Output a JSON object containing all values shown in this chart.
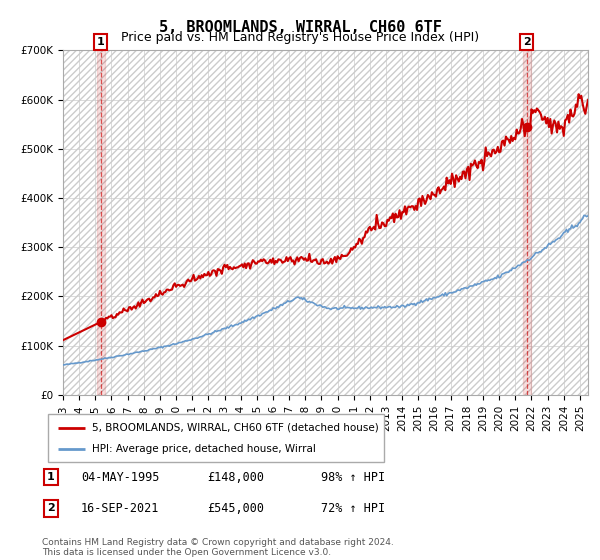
{
  "title": "5, BROOMLANDS, WIRRAL, CH60 6TF",
  "subtitle": "Price paid vs. HM Land Registry's House Price Index (HPI)",
  "ylim": [
    0,
    700000
  ],
  "yticks": [
    0,
    100000,
    200000,
    300000,
    400000,
    500000,
    600000,
    700000
  ],
  "ytick_labels": [
    "£0",
    "£100K",
    "£200K",
    "£300K",
    "£400K",
    "£500K",
    "£600K",
    "£700K"
  ],
  "xlim_start": 1993.0,
  "xlim_end": 2025.5,
  "sale1_x": 1995.34,
  "sale1_y": 148000,
  "sale2_x": 2021.71,
  "sale2_y": 545000,
  "hpi_color": "#6699cc",
  "price_color": "#cc0000",
  "sale_dot_color": "#cc0000",
  "grid_color": "#cccccc",
  "legend_entry1": "5, BROOMLANDS, WIRRAL, CH60 6TF (detached house)",
  "legend_entry2": "HPI: Average price, detached house, Wirral",
  "table_row1": [
    "1",
    "04-MAY-1995",
    "£148,000",
    "98% ↑ HPI"
  ],
  "table_row2": [
    "2",
    "16-SEP-2021",
    "£545,000",
    "72% ↑ HPI"
  ],
  "footnote": "Contains HM Land Registry data © Crown copyright and database right 2024.\nThis data is licensed under the Open Government Licence v3.0.",
  "title_fontsize": 11,
  "subtitle_fontsize": 9,
  "tick_fontsize": 7.5
}
